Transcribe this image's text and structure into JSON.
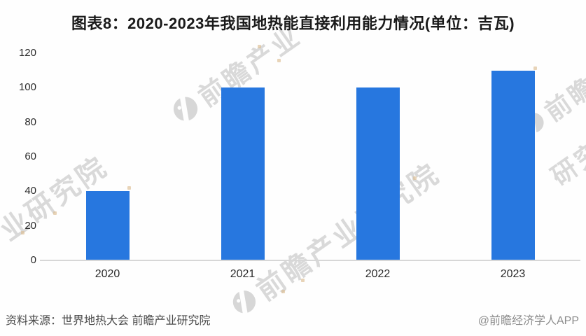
{
  "title": "图表8：2020-2023年我国地热能直接利用能力情况(单位：吉瓦)",
  "chart_data": {
    "type": "bar",
    "title": "图表8：2020-2023年我国地热能直接利用能力情况",
    "unit_label": "单位：吉瓦",
    "categories": [
      "2020",
      "2021",
      "2022",
      "2023"
    ],
    "values": [
      40,
      100,
      100,
      110
    ],
    "xlabel": "",
    "ylabel": "",
    "ylim": [
      0,
      120
    ],
    "y_ticks": [
      0,
      20,
      40,
      60,
      80,
      100,
      120
    ],
    "grid": false,
    "legend": false,
    "bar_color": "#2777df"
  },
  "watermark": {
    "full_text": "前瞻产业研究院",
    "brand_short": "前瞻产业",
    "fragment_tail": "研究院"
  },
  "footer": {
    "source": "资料来源：世界地热大会 前瞻产业研究院",
    "credit": "@前瞻经济学人APP"
  },
  "colors": {
    "bar": "#2777df",
    "axis_line": "#d7d7d7",
    "watermark_text": "#d9d9d9",
    "title_text": "#1a1a1a",
    "tick_text": "#2b2b2b",
    "source_text": "#4a4a4a",
    "credit_text": "#8c8c8c"
  }
}
